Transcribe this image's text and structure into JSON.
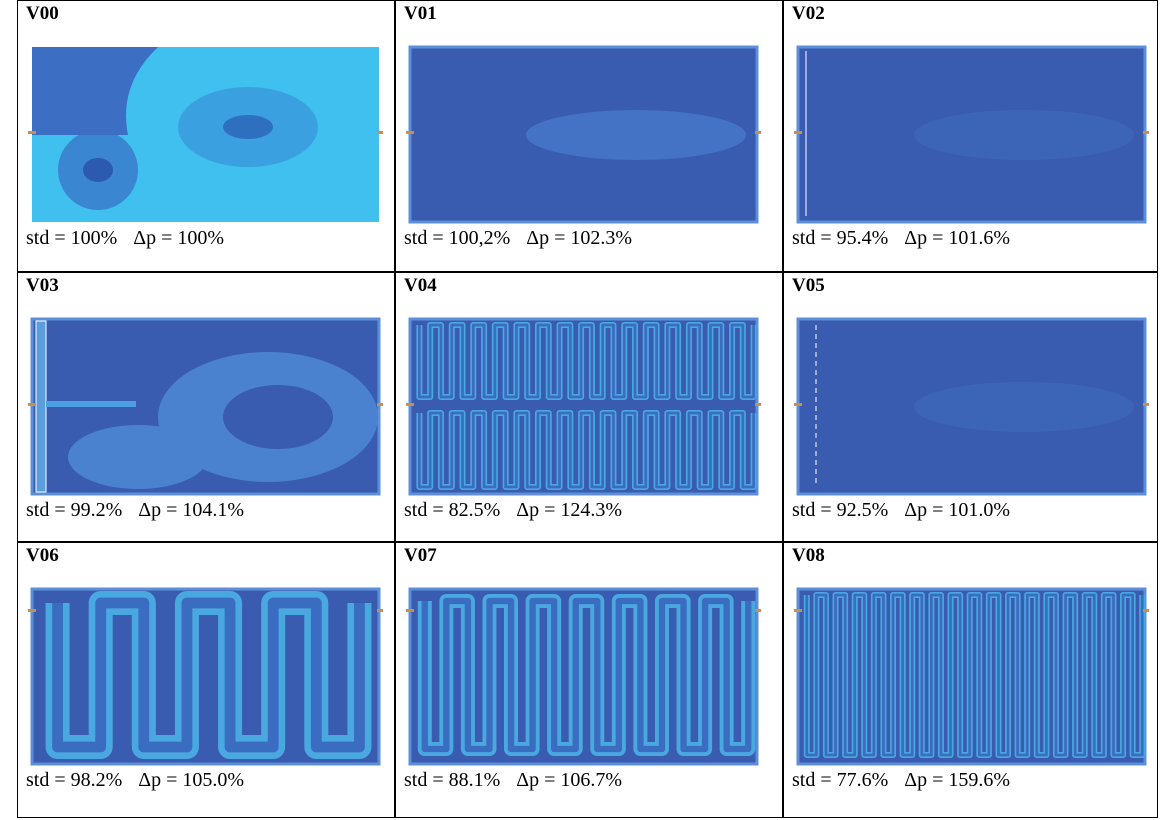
{
  "panels": [
    {
      "label": "V00",
      "std": "std = 100%",
      "dp": "Δp = 100%"
    },
    {
      "label": "V01",
      "std": "std = 100,2%",
      "dp": "Δp = 102.3%"
    },
    {
      "label": "V02",
      "std": "std = 95.4%",
      "dp": "Δp = 101.6%"
    },
    {
      "label": "V03",
      "std": "std = 99.2%",
      "dp": "Δp = 104.1%"
    },
    {
      "label": "V04",
      "std": "std = 82.5%",
      "dp": "Δp = 124.3%"
    },
    {
      "label": "V05",
      "std": "std = 92.5%",
      "dp": "Δp = 101.0%"
    },
    {
      "label": "V06",
      "std": "std = 98.2%",
      "dp": "Δp = 105.0%"
    },
    {
      "label": "V07",
      "std": "std = 88.1%",
      "dp": "Δp = 106.7%"
    },
    {
      "label": "V08",
      "std": "std = 77.6%",
      "dp": "Δp = 159.6%"
    }
  ]
}
